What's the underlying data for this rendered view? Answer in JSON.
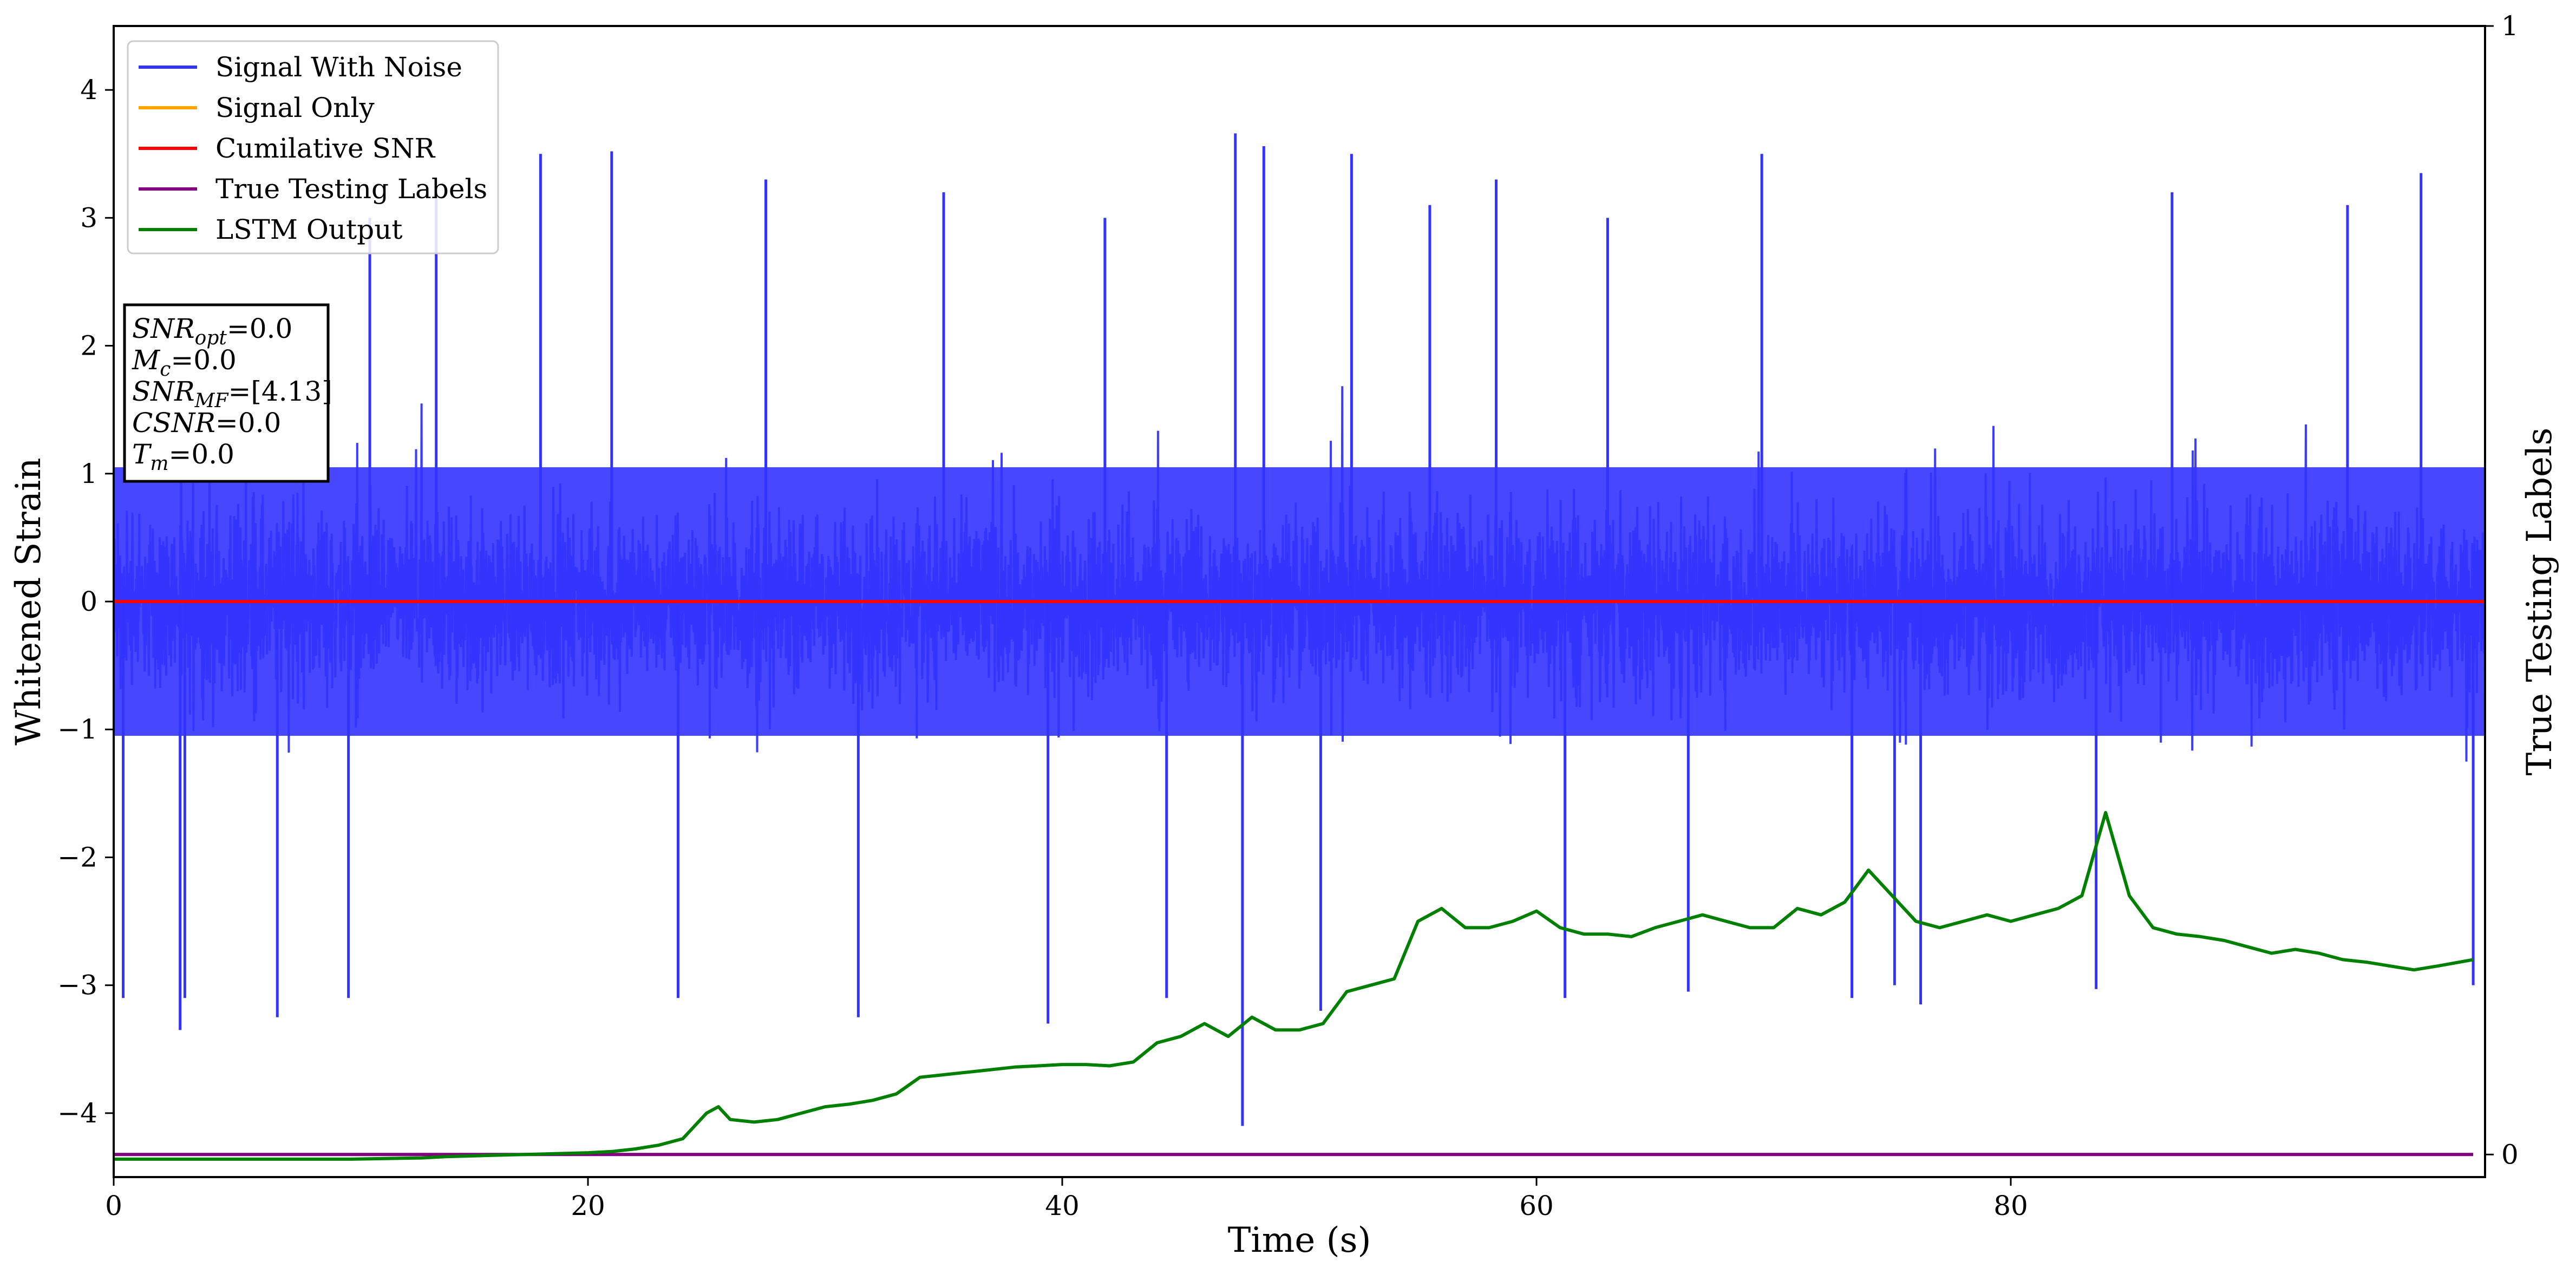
{
  "chart_data": {
    "type": "line",
    "xlabel": "Time (s)",
    "ylabel": "Whitened Strain",
    "y2label": "True Testing Labels",
    "xlim": [
      0,
      100
    ],
    "ylim": [
      -4.5,
      4.5
    ],
    "y2lim": [
      -0.02,
      1
    ],
    "x_ticks": [
      0,
      20,
      40,
      60,
      80
    ],
    "x_tick_labels": [
      "0",
      "20",
      "40",
      "60",
      "80"
    ],
    "y_ticks": [
      4,
      3,
      2,
      1,
      0,
      -1,
      -2,
      -3,
      -4
    ],
    "y_tick_labels": [
      "4",
      "3",
      "2",
      "1",
      "0",
      "−1",
      "−2",
      "−3",
      "−4"
    ],
    "y2_ticks": [
      1,
      0
    ],
    "y2_tick_labels": [
      "1",
      "0"
    ],
    "grid": false,
    "legend_position": "top-left",
    "legend": [
      {
        "label": "Signal With Noise",
        "color": "#3333ff"
      },
      {
        "label": "Signal Only",
        "color": "#ffa500"
      },
      {
        "label": "Cumilative SNR",
        "color": "#ff0000"
      },
      {
        "label": "True Testing Labels",
        "color": "#800080"
      },
      {
        "label": "LSTM Output",
        "color": "#008000"
      }
    ],
    "annotation": {
      "position": "upper-left",
      "lines": [
        {
          "base": "SNR",
          "sub": "opt",
          "value": "=0.0"
        },
        {
          "base": "M",
          "sub": "c",
          "value": "=0.0"
        },
        {
          "base": "SNR",
          "sub": "MF",
          "value": "=[4.13]"
        },
        {
          "base": "CSNR",
          "sub": "",
          "value": "=0.0"
        },
        {
          "base": "T",
          "sub": "m",
          "value": "=0.0"
        }
      ]
    },
    "series": [
      {
        "name": "Signal With Noise",
        "axis": "left",
        "color": "#3333ff",
        "style": "dense-noise",
        "x_range": [
          0,
          100
        ],
        "typical_envelope": [
          -1.4,
          1.4
        ],
        "peak_max": 3.66,
        "peak_min": -4.1,
        "spikes": [
          {
            "x": 0.4,
            "y": -3.1
          },
          {
            "x": 2.8,
            "y": -3.35
          },
          {
            "x": 3.0,
            "y": -3.1
          },
          {
            "x": 6.9,
            "y": -3.25
          },
          {
            "x": 9.9,
            "y": -3.1
          },
          {
            "x": 10.8,
            "y": 3.0
          },
          {
            "x": 13.6,
            "y": 3.25
          },
          {
            "x": 18.0,
            "y": 3.5
          },
          {
            "x": 21.0,
            "y": 3.52
          },
          {
            "x": 23.8,
            "y": -3.1
          },
          {
            "x": 27.5,
            "y": 3.3
          },
          {
            "x": 31.4,
            "y": -3.25
          },
          {
            "x": 35.0,
            "y": 3.2
          },
          {
            "x": 39.4,
            "y": -3.3
          },
          {
            "x": 41.8,
            "y": 3.0
          },
          {
            "x": 44.4,
            "y": -3.1
          },
          {
            "x": 47.3,
            "y": 3.66
          },
          {
            "x": 47.6,
            "y": -4.1
          },
          {
            "x": 48.5,
            "y": 3.56
          },
          {
            "x": 50.9,
            "y": -3.2
          },
          {
            "x": 52.2,
            "y": 3.5
          },
          {
            "x": 55.5,
            "y": 3.1
          },
          {
            "x": 58.3,
            "y": 3.3
          },
          {
            "x": 61.2,
            "y": -3.1
          },
          {
            "x": 63.0,
            "y": 3.0
          },
          {
            "x": 66.4,
            "y": -3.05
          },
          {
            "x": 69.5,
            "y": 3.5
          },
          {
            "x": 73.3,
            "y": -3.1
          },
          {
            "x": 75.1,
            "y": -3.0
          },
          {
            "x": 76.2,
            "y": -3.15
          },
          {
            "x": 83.6,
            "y": -3.03
          },
          {
            "x": 86.8,
            "y": 3.2
          },
          {
            "x": 94.2,
            "y": 3.1
          },
          {
            "x": 97.3,
            "y": 3.35
          },
          {
            "x": 99.5,
            "y": -3.0
          }
        ]
      },
      {
        "name": "Signal Only",
        "axis": "left",
        "color": "#ffa500",
        "x": [
          0,
          100
        ],
        "y": [
          0,
          0
        ]
      },
      {
        "name": "Cumilative SNR",
        "axis": "left",
        "color": "#ff0000",
        "x": [
          0,
          100
        ],
        "y": [
          0,
          0
        ]
      },
      {
        "name": "True Testing Labels",
        "axis": "right",
        "color": "#800080",
        "x": [
          0,
          99.5
        ],
        "y": [
          0,
          0
        ]
      },
      {
        "name": "LSTM Output",
        "axis": "left",
        "color": "#008000",
        "x": [
          0,
          10,
          13,
          14,
          16,
          18,
          20,
          21,
          22,
          23,
          24,
          25,
          25.5,
          26,
          27,
          28,
          29,
          30,
          31,
          32,
          33,
          34,
          35,
          36,
          37,
          38,
          39,
          40,
          41,
          42,
          43,
          44,
          45,
          46,
          47,
          48,
          49,
          50,
          51,
          52,
          53,
          54,
          55,
          56,
          57,
          58,
          59,
          60,
          61,
          62,
          63,
          64,
          65,
          66,
          67,
          68,
          69,
          70,
          71,
          72,
          73,
          74,
          75,
          76,
          77,
          78,
          79,
          80,
          81,
          82,
          83,
          84,
          85,
          86,
          87,
          88,
          89,
          90,
          91,
          92,
          93,
          94,
          95,
          96,
          97,
          98,
          99.5
        ],
        "y": [
          -4.36,
          -4.36,
          -4.35,
          -4.34,
          -4.33,
          -4.32,
          -4.31,
          -4.3,
          -4.28,
          -4.25,
          -4.2,
          -4.0,
          -3.95,
          -4.05,
          -4.07,
          -4.05,
          -4.0,
          -3.95,
          -3.93,
          -3.9,
          -3.85,
          -3.72,
          -3.7,
          -3.68,
          -3.66,
          -3.64,
          -3.63,
          -3.62,
          -3.62,
          -3.63,
          -3.6,
          -3.45,
          -3.4,
          -3.3,
          -3.4,
          -3.25,
          -3.35,
          -3.35,
          -3.3,
          -3.05,
          -3.0,
          -2.95,
          -2.5,
          -2.4,
          -2.55,
          -2.55,
          -2.5,
          -2.42,
          -2.55,
          -2.6,
          -2.6,
          -2.62,
          -2.55,
          -2.5,
          -2.45,
          -2.5,
          -2.55,
          -2.55,
          -2.4,
          -2.45,
          -2.35,
          -2.1,
          -2.3,
          -2.5,
          -2.55,
          -2.5,
          -2.45,
          -2.5,
          -2.45,
          -2.4,
          -2.3,
          -1.65,
          -2.3,
          -2.55,
          -2.6,
          -2.62,
          -2.65,
          -2.7,
          -2.75,
          -2.72,
          -2.75,
          -2.8,
          -2.82,
          -2.85,
          -2.88,
          -2.85,
          -2.8
        ]
      }
    ]
  }
}
